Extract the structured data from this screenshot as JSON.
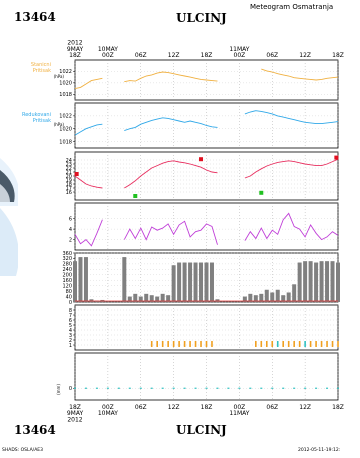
{
  "header": {
    "station_id": "13464",
    "city": "ULCINJ",
    "subtitle": "Meteogram Osmatranja"
  },
  "time_axis": {
    "labels_top": [
      {
        "t": 0,
        "lines": [
          "2012",
          "9MAY",
          "18Z"
        ]
      },
      {
        "t": 6,
        "lines": [
          "10MAY",
          "00Z"
        ]
      },
      {
        "t": 12,
        "lines": [
          "06Z"
        ]
      },
      {
        "t": 18,
        "lines": [
          "12Z"
        ]
      },
      {
        "t": 24,
        "lines": [
          "18Z"
        ]
      },
      {
        "t": 30,
        "lines": [
          "11MAY",
          "00Z"
        ]
      },
      {
        "t": 36,
        "lines": [
          "06Z"
        ]
      },
      {
        "t": 42,
        "lines": [
          "12Z"
        ]
      },
      {
        "t": 48,
        "lines": [
          "18Z"
        ]
      }
    ],
    "labels_bottom": [
      {
        "t": 0,
        "lines": [
          "18Z",
          "9MAY",
          "2012"
        ]
      },
      {
        "t": 6,
        "lines": [
          "00Z",
          "10MAY"
        ]
      },
      {
        "t": 12,
        "lines": [
          "06Z"
        ]
      },
      {
        "t": 18,
        "lines": [
          "12Z"
        ]
      },
      {
        "t": 24,
        "lines": [
          "18Z"
        ]
      },
      {
        "t": 30,
        "lines": [
          "00Z",
          "11MAY"
        ]
      },
      {
        "t": 36,
        "lines": [
          "06Z"
        ]
      },
      {
        "t": 42,
        "lines": [
          "12Z"
        ]
      },
      {
        "t": 48,
        "lines": [
          "18Z"
        ]
      }
    ]
  },
  "panel_labels": {
    "station_pressure": [
      "Stanicni",
      "Pritisak"
    ],
    "station_pressure_unit": "(hPa)",
    "reduced_pressure": [
      "Redukovani",
      "Pritisak"
    ],
    "reduced_pressure_unit": "(hPa)",
    "unit_mm": "(mm)"
  },
  "footer": {
    "station_id": "13464",
    "city": "ULCINJ",
    "left_note": "SHADS: OSLA/AE3",
    "right_note": "2012-05-11-19:12:"
  },
  "colors": {
    "station_pressure": "#f0b040",
    "reduced_pressure": "#30a8e8",
    "temperature": "#e83060",
    "wind": "#c040d8",
    "bars": "#808080",
    "orange_marks": "#f0a020",
    "cyan_marks": "#30c0c0"
  },
  "chart_data": [
    {
      "type": "line",
      "name": "station_pressure",
      "title": "Stanicni Pritisak",
      "ylabel": "(hPa)",
      "ylim": [
        1017,
        1024
      ],
      "yticks": [
        1018,
        1020,
        1022
      ],
      "series": [
        {
          "x": [
            0,
            1,
            2,
            3,
            4,
            5
          ],
          "y": [
            1019.0,
            1019.2,
            1019.8,
            1020.4,
            1020.6,
            1020.8
          ]
        },
        {
          "x": [
            9,
            10,
            11,
            12,
            13,
            14,
            15,
            16,
            17,
            18,
            19,
            20,
            21,
            22,
            23,
            24,
            25,
            26
          ],
          "y": [
            1020.2,
            1020.4,
            1020.3,
            1020.8,
            1021.2,
            1021.4,
            1021.7,
            1021.9,
            1021.8,
            1021.6,
            1021.4,
            1021.2,
            1021.0,
            1020.8,
            1020.6,
            1020.5,
            1020.4,
            1020.3
          ]
        },
        {
          "x": [
            34,
            35,
            36,
            37,
            38,
            39,
            40,
            41,
            42,
            43,
            44,
            45,
            46,
            47,
            48
          ],
          "y": [
            1022.4,
            1022.1,
            1021.9,
            1021.6,
            1021.4,
            1021.2,
            1020.9,
            1020.8,
            1020.7,
            1020.6,
            1020.5,
            1020.6,
            1020.8,
            1020.9,
            1021.0
          ]
        }
      ]
    },
    {
      "type": "line",
      "name": "reduced_pressure",
      "title": "Redukovani Pritisak",
      "ylabel": "(hPa)",
      "ylim": [
        1017,
        1024
      ],
      "yticks": [
        1018,
        1020,
        1022
      ],
      "series": [
        {
          "x": [
            0,
            1,
            2,
            3,
            4,
            5
          ],
          "y": [
            1019.0,
            1019.5,
            1020.0,
            1020.3,
            1020.6,
            1020.7
          ]
        },
        {
          "x": [
            9,
            10,
            11,
            12,
            13,
            14,
            15,
            16,
            17,
            18,
            19,
            20,
            21,
            22,
            23,
            24,
            25,
            26
          ],
          "y": [
            1019.7,
            1020.0,
            1020.2,
            1020.7,
            1021.0,
            1021.3,
            1021.5,
            1021.7,
            1021.6,
            1021.4,
            1021.2,
            1021.0,
            1021.2,
            1021.0,
            1020.8,
            1020.5,
            1020.3,
            1020.2
          ]
        },
        {
          "x": [
            31,
            32,
            33,
            34,
            35,
            36,
            37,
            38,
            39,
            40,
            41,
            42,
            43,
            44,
            45,
            46,
            47,
            48
          ],
          "y": [
            1022.3,
            1022.6,
            1022.8,
            1022.7,
            1022.5,
            1022.3,
            1022.0,
            1021.8,
            1021.6,
            1021.4,
            1021.2,
            1021.0,
            1020.9,
            1020.8,
            1020.8,
            1020.9,
            1021.0,
            1021.1
          ]
        }
      ]
    },
    {
      "type": "line",
      "name": "temperature",
      "ylim": [
        14,
        26
      ],
      "yticks": [
        16,
        17,
        18,
        19,
        20,
        21,
        22,
        23,
        24
      ],
      "series": [
        {
          "x": [
            0,
            1,
            2,
            3,
            4,
            5
          ],
          "y": [
            20.0,
            19.0,
            18.0,
            17.5,
            17.2,
            17.0
          ]
        },
        {
          "x": [
            9,
            10,
            11,
            12,
            13,
            14,
            15,
            16,
            17,
            18,
            19,
            20,
            21,
            22,
            23,
            24,
            25,
            26
          ],
          "y": [
            17.0,
            17.8,
            18.8,
            20.0,
            21.0,
            22.0,
            22.6,
            23.2,
            23.6,
            23.8,
            23.5,
            23.3,
            23.0,
            22.6,
            22.2,
            21.5,
            21.0,
            20.8
          ]
        },
        {
          "x": [
            31,
            32,
            33,
            34,
            35,
            36,
            37,
            38,
            39,
            40,
            41,
            42,
            43,
            44,
            45,
            46,
            47,
            48
          ],
          "y": [
            19.5,
            20.0,
            21.0,
            21.8,
            22.5,
            23.0,
            23.4,
            23.6,
            23.8,
            23.6,
            23.3,
            23.0,
            22.8,
            22.6,
            22.6,
            23.0,
            23.6,
            24.2
          ]
        }
      ],
      "markers": [
        {
          "x": 0.3,
          "y": 20.5,
          "color": "#e01020"
        },
        {
          "x": 11,
          "y": 15.0,
          "color": "#20c020"
        },
        {
          "x": 23,
          "y": 24.2,
          "color": "#e01020"
        },
        {
          "x": 34,
          "y": 15.8,
          "color": "#20c020"
        },
        {
          "x": 47.7,
          "y": 24.6,
          "color": "#e01020"
        }
      ]
    },
    {
      "type": "line",
      "name": "wind",
      "ylim": [
        0,
        9
      ],
      "yticks": [
        2,
        4,
        6
      ],
      "series": [
        {
          "x": [
            0,
            1,
            2,
            3,
            4,
            5
          ],
          "y": [
            3.0,
            1.2,
            2.0,
            0.8,
            3.2,
            5.8
          ]
        },
        {
          "x": [
            9,
            10,
            11,
            12,
            13,
            14,
            15,
            16,
            17,
            18,
            19,
            20,
            21,
            22,
            23,
            24,
            25,
            26
          ],
          "y": [
            2.0,
            4.0,
            2.2,
            4.2,
            2.0,
            4.4,
            3.8,
            4.2,
            5.0,
            3.0,
            4.8,
            5.5,
            2.5,
            3.5,
            3.8,
            5.0,
            4.5,
            1.0
          ]
        },
        {
          "x": [
            31,
            32,
            33,
            34,
            35,
            36,
            37,
            38,
            39,
            40,
            41,
            42,
            43,
            44,
            45,
            46,
            47,
            48
          ],
          "y": [
            1.8,
            3.5,
            2.2,
            4.2,
            2.2,
            3.8,
            3.0,
            5.8,
            7.0,
            4.5,
            4.0,
            2.5,
            4.8,
            3.2,
            2.0,
            2.5,
            3.5,
            2.8
          ]
        }
      ]
    },
    {
      "type": "bar",
      "name": "wind_direction",
      "ylim": [
        0,
        360
      ],
      "yticks": [
        0,
        40,
        80,
        120,
        160,
        200,
        240,
        280,
        320,
        360
      ],
      "x": [
        0,
        1,
        2,
        3,
        4,
        5,
        9,
        10,
        11,
        12,
        13,
        14,
        15,
        16,
        17,
        18,
        19,
        20,
        21,
        22,
        23,
        24,
        25,
        26,
        31,
        32,
        33,
        34,
        35,
        36,
        37,
        38,
        39,
        40,
        41,
        42,
        43,
        44,
        45,
        46,
        47,
        48
      ],
      "values": [
        300,
        330,
        330,
        20,
        10,
        15,
        330,
        40,
        60,
        40,
        60,
        50,
        40,
        60,
        50,
        270,
        290,
        290,
        290,
        290,
        290,
        290,
        290,
        20,
        40,
        60,
        50,
        60,
        90,
        70,
        90,
        50,
        70,
        130,
        290,
        300,
        300,
        290,
        300,
        300,
        300,
        290
      ]
    },
    {
      "type": "bar",
      "name": "cloud_marks",
      "ylim": [
        0,
        9
      ],
      "yticks": [
        1,
        2,
        3,
        4,
        5,
        6,
        7,
        8
      ],
      "x": [
        14,
        15,
        16,
        17,
        18,
        19,
        20,
        21,
        22,
        23,
        24,
        25,
        33,
        34,
        35,
        36,
        37,
        38,
        39,
        40,
        41,
        42,
        43,
        44,
        45,
        46,
        47,
        48
      ],
      "values": [
        1,
        1,
        1,
        1,
        1,
        1,
        1,
        1,
        1,
        1,
        1,
        1,
        1,
        1,
        1,
        1,
        1,
        1,
        1,
        1,
        1,
        1,
        1,
        1,
        1,
        1,
        1,
        1
      ]
    },
    {
      "type": "scatter",
      "name": "precipitation",
      "ylabel": "(mm)",
      "ylim": [
        -1,
        3
      ],
      "yticks": [
        0
      ],
      "x": [
        0,
        2,
        4,
        6,
        8,
        10,
        12,
        14,
        16,
        18,
        20,
        22,
        24,
        26,
        28,
        30,
        32,
        34,
        36,
        38,
        40,
        42,
        44,
        46,
        48
      ],
      "values": [
        0,
        0,
        0,
        0,
        0,
        0,
        0,
        0,
        0,
        0,
        0,
        0,
        0,
        0,
        0,
        0,
        0,
        0,
        0,
        0,
        0,
        0,
        0,
        0,
        0
      ]
    }
  ]
}
